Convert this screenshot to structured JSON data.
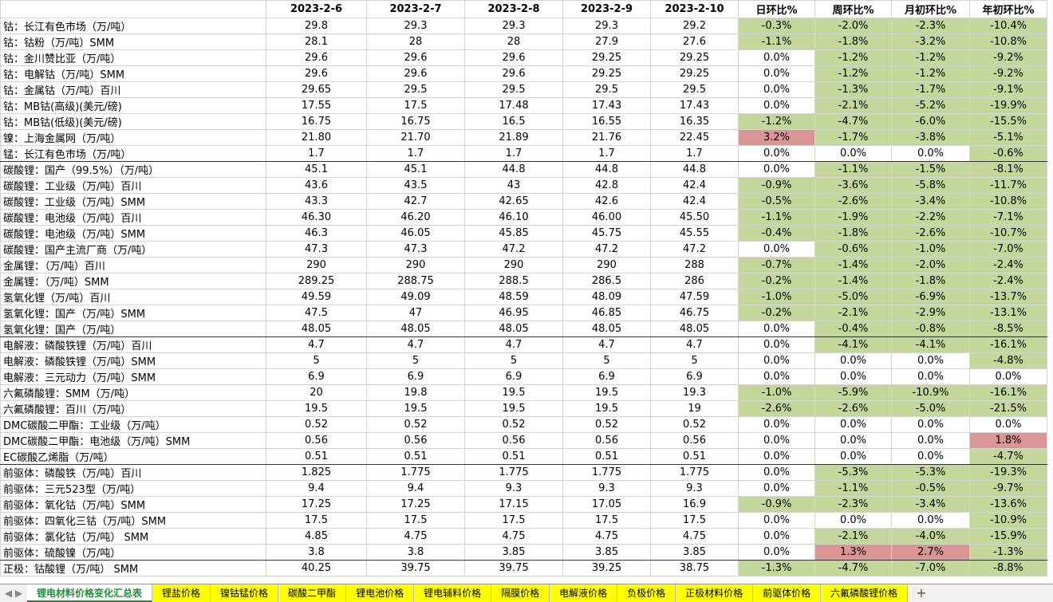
{
  "table": {
    "header": [
      "",
      "2023-2-6",
      "2023-2-7",
      "2023-2-8",
      "2023-2-9",
      "2023-2-10",
      "日环比%",
      "周环比%",
      "月初环比%",
      "年初环比%"
    ],
    "rows": [
      [
        "钴：长江有色市场（万/吨）",
        "29.8",
        "29.3",
        "29.3",
        "29.3",
        "29.2",
        "-0.3%",
        "-2.0%",
        "-2.3%",
        "-10.4%"
      ],
      [
        "钴：钴粉（万/吨）SMM",
        "28.1",
        "28",
        "28",
        "27.9",
        "27.6",
        "-1.1%",
        "-1.8%",
        "-3.2%",
        "-10.8%"
      ],
      [
        "钴：金川赞比亚（万/吨）",
        "29.6",
        "29.6",
        "29.6",
        "29.25",
        "29.25",
        "0.0%",
        "-1.2%",
        "-1.2%",
        "-9.2%"
      ],
      [
        "钴：电解钴（万/吨）SMM",
        "29.6",
        "29.6",
        "29.6",
        "29.25",
        "29.25",
        "0.0%",
        "-1.2%",
        "-1.2%",
        "-9.2%"
      ],
      [
        "钴：金属钴（万/吨）百川",
        "29.65",
        "29.5",
        "29.5",
        "29.5",
        "29.5",
        "0.0%",
        "-1.3%",
        "-1.7%",
        "-9.1%"
      ],
      [
        "钴：MB钴(高级)(美元/磅)",
        "17.55",
        "17.5",
        "17.48",
        "17.43",
        "17.43",
        "0.0%",
        "-2.1%",
        "-5.2%",
        "-19.9%"
      ],
      [
        "钴：MB钴(低级)(美元/磅)",
        "16.75",
        "16.75",
        "16.5",
        "16.55",
        "16.35",
        "-1.2%",
        "-4.7%",
        "-6.0%",
        "-15.5%"
      ],
      [
        "镍：上海金属网（万/吨）",
        "21.80",
        "21.70",
        "21.89",
        "21.76",
        "22.45",
        "3.2%",
        "-1.7%",
        "-3.8%",
        "-5.1%"
      ],
      [
        "锰：长江有色市场（万/吨）",
        "1.7",
        "1.7",
        "1.7",
        "1.7",
        "1.7",
        "0.0%",
        "0.0%",
        "0.0%",
        "-0.6%"
      ],
      [
        "碳酸锂：国产（99.5%）（万/吨）",
        "45.1",
        "45.1",
        "44.8",
        "44.8",
        "44.8",
        "0.0%",
        "-1.1%",
        "-1.5%",
        "-8.1%"
      ],
      [
        "碳酸锂：工业级（万/吨）百川",
        "43.6",
        "43.5",
        "43",
        "42.8",
        "42.4",
        "-0.9%",
        "-3.6%",
        "-5.8%",
        "-11.7%"
      ],
      [
        "碳酸锂：工业级（万/吨）SMM",
        "43.3",
        "42.7",
        "42.65",
        "42.6",
        "42.4",
        "-0.5%",
        "-2.6%",
        "-3.4%",
        "-10.8%"
      ],
      [
        "碳酸锂：电池级（万/吨）百川",
        "46.30",
        "46.20",
        "46.10",
        "46.00",
        "45.50",
        "-1.1%",
        "-1.9%",
        "-2.2%",
        "-7.1%"
      ],
      [
        "碳酸锂：电池级（万/吨）SMM",
        "46.3",
        "46.05",
        "45.85",
        "45.75",
        "45.55",
        "-0.4%",
        "-1.8%",
        "-2.6%",
        "-10.7%"
      ],
      [
        "碳酸锂：国产主流厂商（万/吨）",
        "47.3",
        "47.3",
        "47.2",
        "47.2",
        "47.2",
        "0.0%",
        "-0.6%",
        "-1.0%",
        "-7.0%"
      ],
      [
        "金属锂：（万/吨）百川",
        "290",
        "290",
        "290",
        "290",
        "288",
        "-0.7%",
        "-1.4%",
        "-2.0%",
        "-2.4%"
      ],
      [
        "金属锂：（万/吨）SMM",
        "289.25",
        "288.75",
        "288.5",
        "286.5",
        "286",
        "-0.2%",
        "-1.4%",
        "-1.8%",
        "-2.4%"
      ],
      [
        "氢氧化锂（万/吨）百川",
        "49.59",
        "49.09",
        "48.59",
        "48.09",
        "47.59",
        "-1.0%",
        "-5.0%",
        "-6.9%",
        "-13.7%"
      ],
      [
        "氢氧化锂：国产（万/吨）SMM",
        "47.5",
        "47",
        "46.95",
        "46.85",
        "46.75",
        "-0.2%",
        "-2.1%",
        "-2.9%",
        "-13.1%"
      ],
      [
        "氢氧化锂：国产（万/吨）",
        "48.05",
        "48.05",
        "48.05",
        "48.05",
        "48.05",
        "0.0%",
        "-0.4%",
        "-0.8%",
        "-8.5%"
      ],
      [
        "电解液：磷酸铁锂（万/吨）百川",
        "4.7",
        "4.7",
        "4.7",
        "4.7",
        "4.7",
        "0.0%",
        "-4.1%",
        "-4.1%",
        "-16.1%"
      ],
      [
        "电解液：磷酸铁锂（万/吨）SMM",
        "5",
        "5",
        "5",
        "5",
        "5",
        "0.0%",
        "0.0%",
        "0.0%",
        "-4.8%"
      ],
      [
        "电解液：三元动力（万/吨）SMM",
        "6.9",
        "6.9",
        "6.9",
        "6.9",
        "6.9",
        "0.0%",
        "0.0%",
        "0.0%",
        "0.0%"
      ],
      [
        "六氟磷酸锂：SMM（万/吨）",
        "20",
        "19.8",
        "19.5",
        "19.5",
        "19.3",
        "-1.0%",
        "-5.9%",
        "-10.9%",
        "-16.1%"
      ],
      [
        "六氟磷酸锂：百川（万/吨）",
        "19.5",
        "19.5",
        "19.5",
        "19.5",
        "19",
        "-2.6%",
        "-2.6%",
        "-5.0%",
        "-21.5%"
      ],
      [
        "DMC碳酸二甲酯：工业级（万/吨）",
        "0.52",
        "0.52",
        "0.52",
        "0.52",
        "0.52",
        "0.0%",
        "0.0%",
        "0.0%",
        "0.0%"
      ],
      [
        "DMC碳酸二甲酯：电池级（万/吨）SMM",
        "0.56",
        "0.56",
        "0.56",
        "0.56",
        "0.56",
        "0.0%",
        "0.0%",
        "0.0%",
        "1.8%"
      ],
      [
        "EC碳酸乙烯脂（万/吨）",
        "0.51",
        "0.51",
        "0.51",
        "0.51",
        "0.51",
        "0.0%",
        "0.0%",
        "0.0%",
        "-4.7%"
      ],
      [
        "前驱体：磷酸铁（万/吨）百川",
        "1.825",
        "1.775",
        "1.775",
        "1.775",
        "1.775",
        "0.0%",
        "-5.3%",
        "-5.3%",
        "-19.3%"
      ],
      [
        "前驱体：三元523型（万/吨）",
        "9.4",
        "9.4",
        "9.3",
        "9.3",
        "9.3",
        "0.0%",
        "-1.1%",
        "-0.5%",
        "-9.7%"
      ],
      [
        "前驱体：氧化钴（万/吨）SMM",
        "17.25",
        "17.25",
        "17.15",
        "17.05",
        "16.9",
        "-0.9%",
        "-2.3%",
        "-3.4%",
        "-13.6%"
      ],
      [
        "前驱体：四氧化三钴（万/吨）SMM",
        "17.5",
        "17.5",
        "17.5",
        "17.5",
        "17.5",
        "0.0%",
        "0.0%",
        "0.0%",
        "-10.9%"
      ],
      [
        "前驱体：氯化钴（万/吨） SMM",
        "4.85",
        "4.75",
        "4.75",
        "4.75",
        "4.75",
        "0.0%",
        "-2.1%",
        "-4.0%",
        "-15.9%"
      ],
      [
        "前驱体：硫酸镍（万/吨）",
        "3.8",
        "3.8",
        "3.85",
        "3.85",
        "3.85",
        "0.0%",
        "1.3%",
        "2.7%",
        "-1.3%"
      ],
      [
        "正极：钴酸锂（万/吨） SMM",
        "40.25",
        "39.75",
        "39.75",
        "39.25",
        "38.75",
        "-1.3%",
        "-4.7%",
        "-7.0%",
        "-8.8%"
      ]
    ]
  },
  "tabs": [
    "锂电材料价格变化汇总表",
    "锂盐价格",
    "镍钴锰价格",
    "碳酸二甲酯",
    "锂电池价格",
    "锂电辅料价格",
    "隔膜价格",
    "电解液价格",
    "负极价格",
    "正极材料价格",
    "前驱体价格",
    "六氟磷酸锂价格"
  ]
}
